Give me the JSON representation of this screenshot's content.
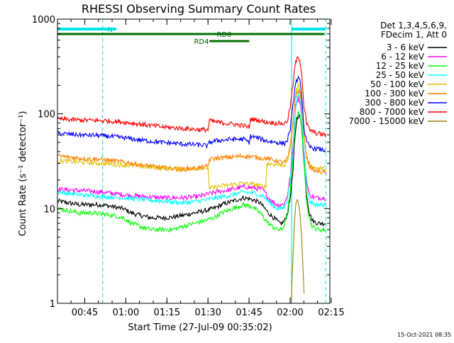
{
  "chart_data": {
    "type": "line",
    "title": "RHESSI Observing Summary Count Rates",
    "xlabel": "Start Time (27-Jul-09 00:35:02)",
    "ylabel": "Count Rate (s⁻¹ detector⁻¹)",
    "y_scale": "log",
    "ylim": [
      1,
      1000
    ],
    "y_ticks": [
      "1",
      "10",
      "100",
      "1000"
    ],
    "xlim": [
      "00:35:02",
      "02:14:30"
    ],
    "x_ticks": [
      "00:45",
      "01:00",
      "01:15",
      "01:30",
      "01:45",
      "02:00",
      "02:15"
    ],
    "legend_header": [
      "Det 1,3,4,5,6,9,",
      "FDecim 1, Att 0"
    ],
    "legend_position": "right",
    "series": [
      {
        "name": "3 - 6 keV",
        "color": "#000000",
        "values": [
          [
            0,
            12
          ],
          [
            4,
            11.5
          ],
          [
            8,
            11
          ],
          [
            12,
            11
          ],
          [
            16,
            11
          ],
          [
            20,
            10.5
          ],
          [
            24,
            10
          ],
          [
            27,
            9
          ],
          [
            30,
            8.5
          ],
          [
            34,
            8
          ],
          [
            38,
            8
          ],
          [
            42,
            8.1
          ],
          [
            46,
            8.5
          ],
          [
            50,
            9
          ],
          [
            54,
            9.5
          ],
          [
            57,
            10
          ],
          [
            60,
            11
          ],
          [
            64,
            12
          ],
          [
            68,
            13
          ],
          [
            71,
            12.5
          ],
          [
            74,
            11.5
          ],
          [
            77,
            9
          ],
          [
            80,
            7.5
          ],
          [
            81,
            7
          ],
          [
            82,
            7
          ],
          [
            83,
            7.5
          ],
          [
            84,
            9
          ],
          [
            85,
            13
          ],
          [
            86,
            25
          ],
          [
            86.5,
            45
          ],
          [
            87,
            70
          ],
          [
            87.5,
            90
          ],
          [
            88,
            97
          ],
          [
            88.5,
            92
          ],
          [
            89,
            78
          ],
          [
            89.5,
            55
          ],
          [
            90,
            30
          ],
          [
            91,
            14
          ],
          [
            92,
            9
          ],
          [
            93,
            7.5
          ],
          [
            95,
            7
          ],
          [
            98,
            7
          ]
        ]
      },
      {
        "name": "6 - 12 keV",
        "color": "#ff00ff",
        "values": [
          [
            0,
            16
          ],
          [
            8,
            15.5
          ],
          [
            16,
            15
          ],
          [
            24,
            14
          ],
          [
            30,
            13.5
          ],
          [
            38,
            13
          ],
          [
            46,
            13
          ],
          [
            52,
            13.5
          ],
          [
            58,
            15
          ],
          [
            64,
            16
          ],
          [
            68,
            17
          ],
          [
            72,
            16.5
          ],
          [
            75,
            16
          ],
          [
            77,
            13
          ],
          [
            80,
            11
          ],
          [
            82,
            11
          ],
          [
            83,
            11.5
          ],
          [
            84,
            14
          ],
          [
            85,
            22
          ],
          [
            86,
            45
          ],
          [
            86.5,
            80
          ],
          [
            87,
            120
          ],
          [
            87.5,
            140
          ],
          [
            88,
            145
          ],
          [
            88.5,
            135
          ],
          [
            89,
            110
          ],
          [
            89.5,
            75
          ],
          [
            90,
            40
          ],
          [
            91,
            20
          ],
          [
            92,
            14
          ],
          [
            94,
            13
          ],
          [
            98,
            13
          ]
        ]
      },
      {
        "name": "12 - 25 keV",
        "color": "#00ff00",
        "values": [
          [
            0,
            10
          ],
          [
            4,
            9.5
          ],
          [
            8,
            9
          ],
          [
            12,
            9
          ],
          [
            16,
            8.8
          ],
          [
            20,
            8.5
          ],
          [
            24,
            8
          ],
          [
            27,
            7
          ],
          [
            30,
            6.5
          ],
          [
            34,
            6
          ],
          [
            38,
            6
          ],
          [
            42,
            6
          ],
          [
            46,
            6.5
          ],
          [
            50,
            7
          ],
          [
            54,
            7.5
          ],
          [
            57,
            8
          ],
          [
            60,
            9
          ],
          [
            64,
            10
          ],
          [
            68,
            11
          ],
          [
            71,
            10.5
          ],
          [
            74,
            9
          ],
          [
            77,
            7
          ],
          [
            80,
            6
          ],
          [
            82,
            6
          ],
          [
            83,
            7
          ],
          [
            84,
            9
          ],
          [
            85,
            15
          ],
          [
            86,
            35
          ],
          [
            86.5,
            60
          ],
          [
            87,
            85
          ],
          [
            87.5,
            98
          ],
          [
            88,
            102
          ],
          [
            88.5,
            95
          ],
          [
            89,
            80
          ],
          [
            89.5,
            55
          ],
          [
            90,
            30
          ],
          [
            91,
            12
          ],
          [
            92,
            8
          ],
          [
            93,
            6.5
          ],
          [
            95,
            6
          ],
          [
            98,
            6
          ]
        ]
      },
      {
        "name": "25 - 50 keV",
        "color": "#00ffff",
        "values": [
          [
            0,
            15
          ],
          [
            8,
            14
          ],
          [
            16,
            13.5
          ],
          [
            24,
            13
          ],
          [
            30,
            12.5
          ],
          [
            38,
            12
          ],
          [
            46,
            11.5
          ],
          [
            52,
            12
          ],
          [
            58,
            13
          ],
          [
            64,
            14
          ],
          [
            68,
            15
          ],
          [
            72,
            14.5
          ],
          [
            75,
            13.5
          ],
          [
            77,
            12
          ],
          [
            80,
            10
          ],
          [
            82,
            10
          ],
          [
            83,
            10.5
          ],
          [
            84,
            13
          ],
          [
            85,
            20
          ],
          [
            86,
            40
          ],
          [
            86.5,
            70
          ],
          [
            87,
            110
          ],
          [
            87.5,
            150
          ],
          [
            88,
            160
          ],
          [
            88.5,
            150
          ],
          [
            89,
            120
          ],
          [
            89.5,
            80
          ],
          [
            90,
            40
          ],
          [
            91,
            18
          ],
          [
            92,
            12
          ],
          [
            94,
            11
          ],
          [
            98,
            11
          ]
        ]
      },
      {
        "name": "50 - 100 keV",
        "color": "#e0c000",
        "values": [
          [
            0,
            32
          ],
          [
            8,
            31
          ],
          [
            16,
            30
          ],
          [
            24,
            29
          ],
          [
            30,
            28
          ],
          [
            38,
            27
          ],
          [
            46,
            26
          ],
          [
            52,
            27
          ],
          [
            55,
            27
          ],
          [
            55.5,
            16
          ],
          [
            58,
            17
          ],
          [
            64,
            18
          ],
          [
            68,
            18.5
          ],
          [
            72,
            18
          ],
          [
            75,
            17
          ],
          [
            76,
            17
          ],
          [
            76.5,
            30
          ],
          [
            80,
            29
          ],
          [
            82,
            29
          ],
          [
            83,
            29
          ],
          [
            84,
            32
          ],
          [
            85,
            45
          ],
          [
            86,
            80
          ],
          [
            86.5,
            120
          ],
          [
            87,
            160
          ],
          [
            87.5,
            190
          ],
          [
            88,
            200
          ],
          [
            88.5,
            190
          ],
          [
            89,
            160
          ],
          [
            89.5,
            110
          ],
          [
            90,
            60
          ],
          [
            91,
            35
          ],
          [
            92,
            29
          ],
          [
            94,
            27
          ],
          [
            98,
            26
          ]
        ]
      },
      {
        "name": "100 - 300 keV",
        "color": "#ff8000",
        "values": [
          [
            0,
            36
          ],
          [
            8,
            34
          ],
          [
            16,
            33
          ],
          [
            24,
            31
          ],
          [
            30,
            29
          ],
          [
            38,
            27
          ],
          [
            46,
            26
          ],
          [
            52,
            27
          ],
          [
            55,
            28
          ],
          [
            55.5,
            33
          ],
          [
            58,
            34
          ],
          [
            64,
            35
          ],
          [
            68,
            36
          ],
          [
            72,
            35
          ],
          [
            75,
            34
          ],
          [
            76,
            34
          ],
          [
            80,
            32
          ],
          [
            82,
            31
          ],
          [
            83,
            31
          ],
          [
            84,
            34
          ],
          [
            85,
            45
          ],
          [
            86,
            80
          ],
          [
            86.5,
            120
          ],
          [
            87,
            150
          ],
          [
            87.5,
            170
          ],
          [
            88,
            175
          ],
          [
            88.5,
            165
          ],
          [
            89,
            140
          ],
          [
            89.5,
            100
          ],
          [
            90,
            60
          ],
          [
            91,
            35
          ],
          [
            92,
            28
          ],
          [
            94,
            25
          ],
          [
            98,
            24
          ]
        ]
      },
      {
        "name": "300 - 800 keV",
        "color": "#0000ff",
        "values": [
          [
            0,
            62
          ],
          [
            8,
            60
          ],
          [
            16,
            59
          ],
          [
            24,
            56
          ],
          [
            30,
            53
          ],
          [
            38,
            50
          ],
          [
            46,
            48
          ],
          [
            52,
            47
          ],
          [
            55,
            46
          ],
          [
            55.5,
            50
          ],
          [
            58,
            52
          ],
          [
            64,
            54
          ],
          [
            68,
            54
          ],
          [
            70,
            50
          ],
          [
            70.5,
            58
          ],
          [
            73,
            56
          ],
          [
            76,
            52
          ],
          [
            80,
            50
          ],
          [
            82,
            49
          ],
          [
            83,
            49
          ],
          [
            84,
            53
          ],
          [
            85,
            70
          ],
          [
            86,
            120
          ],
          [
            86.5,
            170
          ],
          [
            87,
            210
          ],
          [
            87.5,
            230
          ],
          [
            88,
            235
          ],
          [
            88.5,
            220
          ],
          [
            89,
            180
          ],
          [
            89.5,
            120
          ],
          [
            90,
            70
          ],
          [
            91,
            50
          ],
          [
            92,
            45
          ],
          [
            94,
            43
          ],
          [
            98,
            41
          ]
        ]
      },
      {
        "name": "800 - 7000 keV",
        "color": "#ff0000",
        "values": [
          [
            0,
            88
          ],
          [
            8,
            86
          ],
          [
            16,
            85
          ],
          [
            24,
            82
          ],
          [
            30,
            78
          ],
          [
            38,
            73
          ],
          [
            46,
            70
          ],
          [
            52,
            68
          ],
          [
            55,
            68
          ],
          [
            55.5,
            85
          ],
          [
            58,
            82
          ],
          [
            64,
            78
          ],
          [
            68,
            75
          ],
          [
            70,
            72
          ],
          [
            70.5,
            88
          ],
          [
            73,
            86
          ],
          [
            76,
            82
          ],
          [
            80,
            80
          ],
          [
            82,
            79
          ],
          [
            83,
            79
          ],
          [
            84,
            85
          ],
          [
            85,
            120
          ],
          [
            86,
            200
          ],
          [
            86.5,
            280
          ],
          [
            87,
            350
          ],
          [
            87.5,
            380
          ],
          [
            88,
            390
          ],
          [
            88.5,
            370
          ],
          [
            89,
            300
          ],
          [
            89.5,
            200
          ],
          [
            90,
            120
          ],
          [
            91,
            80
          ],
          [
            92,
            68
          ],
          [
            94,
            63
          ],
          [
            98,
            60
          ]
        ]
      },
      {
        "name": "7000 - 15000 keV",
        "color": "#a08000",
        "values": [
          [
            85.3,
            1
          ],
          [
            86,
            3
          ],
          [
            86.5,
            7
          ],
          [
            87,
            11
          ],
          [
            87.5,
            12.5
          ],
          [
            88,
            11.5
          ],
          [
            88.5,
            9
          ],
          [
            89,
            6
          ],
          [
            89.5,
            3
          ],
          [
            90.2,
            1
          ]
        ]
      }
    ],
    "annotations": {
      "N": [
        [
          0,
          21.5
        ],
        [
          85.5,
          98
        ]
      ],
      "RD0": [
        [
          0,
          97.5
        ]
      ],
      "RD4": [
        [
          55.5,
          70
        ]
      ]
    },
    "attenuator_markers_cyan_solid": [
      0,
      85.5
    ],
    "attenuator_markers_cyan_dashed": [
      16.5,
      98
    ]
  },
  "footer": {
    "timestamp": "15-Oct-2021 08:35"
  }
}
